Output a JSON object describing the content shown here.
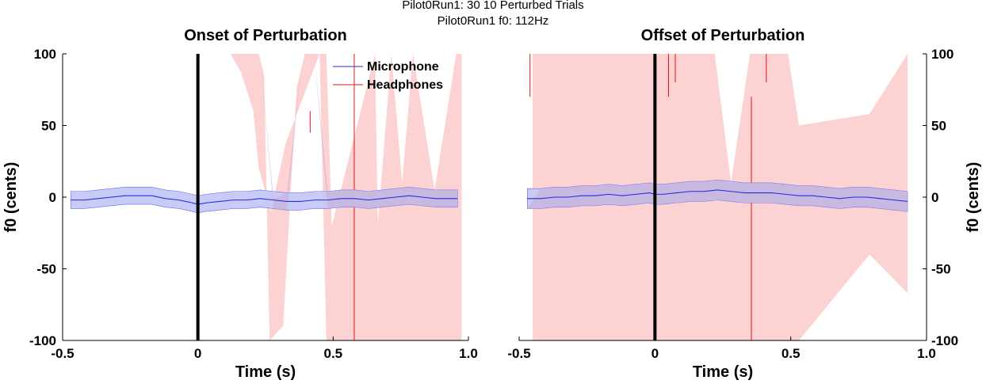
{
  "suptitle": {
    "line1": "Pilot0Run1: 30   10 Perturbed Trials",
    "line2": "Pilot0Run1   f0: 112Hz"
  },
  "colors": {
    "microphone": "#2a2ae6",
    "microphone_band": "#c5c8f5",
    "headphones": "#e01414",
    "headphones_band": "#fcd2d2",
    "overlap": "#c8acd2",
    "event_line": "#000000"
  },
  "chart_data": [
    {
      "type": "line",
      "title": "Onset of Perturbation",
      "xlabel": "Time (s)",
      "ylabel": "f0 (cents)",
      "xlim": [
        -0.5,
        1.0
      ],
      "ylim": [
        -100,
        100
      ],
      "xticks": [
        -0.5,
        0,
        0.5,
        1.0
      ],
      "xtick_labels": [
        "-0.5",
        "0",
        "0.5",
        "1.0"
      ],
      "yticks": [
        -100,
        -50,
        0,
        50,
        100
      ],
      "ytick_labels": [
        "-100",
        "-50",
        "0",
        "50",
        "100"
      ],
      "yaxis_side": "left",
      "event_x": 0,
      "legend": {
        "position": "top-right",
        "entries": [
          "Microphone",
          "Headphones"
        ]
      },
      "series": [
        {
          "name": "Microphone",
          "x": [
            -0.47,
            -0.42,
            -0.37,
            -0.32,
            -0.27,
            -0.22,
            -0.17,
            -0.12,
            -0.07,
            -0.02,
            0.0,
            0.03,
            0.08,
            0.13,
            0.18,
            0.23,
            0.28,
            0.33,
            0.38,
            0.43,
            0.48,
            0.53,
            0.58,
            0.63,
            0.68,
            0.73,
            0.78,
            0.83,
            0.88,
            0.93,
            0.96
          ],
          "mean": [
            -2,
            -2,
            -1,
            0,
            1,
            1,
            1,
            -1,
            -2,
            -4,
            -5,
            -4,
            -3,
            -2,
            -2,
            -1,
            -2,
            -3,
            -3,
            -2,
            -2,
            -1,
            -1,
            -2,
            -1,
            0,
            1,
            0,
            -1,
            -1,
            -1
          ],
          "band": 6
        },
        {
          "name": "Headphones",
          "band_upper": {
            "x": [
              0.07,
              0.12,
              0.16,
              0.205,
              0.225,
              0.27,
              0.325,
              0.45,
              0.475,
              0.495,
              0.655,
              0.665,
              0.715,
              0.755,
              0.795,
              0.875,
              0.955,
              0.975
            ],
            "y": [
              100,
              100,
              87,
              60,
              20,
              -10,
              38,
              100,
              100,
              -20,
              100,
              -20,
              100,
              10,
              100,
              5,
              100,
              100
            ]
          },
          "band_lower": {
            "x": [
              0.07,
              0.12,
              0.16,
              0.205,
              0.225,
              0.245,
              0.265,
              0.315,
              0.365,
              0.395,
              0.45,
              0.475,
              0.495,
              0.655,
              0.665,
              0.715,
              0.755,
              0.795,
              0.875,
              0.955,
              0.975
            ],
            "y": [
              100,
              100,
              100,
              100,
              100,
              85,
              -100,
              -90,
              76,
              100,
              100,
              -100,
              -100,
              -100,
              -100,
              -100,
              -100,
              -100,
              -100,
              -100,
              -100
            ]
          },
          "spikes": [
            {
              "x": 0.415,
              "y_from": 60,
              "y_to": 45
            },
            {
              "x": 0.578,
              "y_from": 100,
              "y_to": -100
            }
          ]
        }
      ]
    },
    {
      "type": "line",
      "title": "Offset of Perturbation",
      "xlabel": "Time (s)",
      "ylabel": "f0 (cents)",
      "xlim": [
        -0.5,
        1.0
      ],
      "ylim": [
        -100,
        100
      ],
      "xticks": [
        -0.5,
        0,
        0.5,
        1.0
      ],
      "xtick_labels": [
        "-0.5",
        "0",
        "0.5",
        "1.0"
      ],
      "yticks": [
        -100,
        -50,
        0,
        50,
        100
      ],
      "ytick_labels": [
        "-100",
        "-50",
        "0",
        "50",
        "100"
      ],
      "yaxis_side": "right",
      "event_x": 0,
      "series": [
        {
          "name": "Microphone",
          "x": [
            -0.47,
            -0.42,
            -0.37,
            -0.32,
            -0.27,
            -0.22,
            -0.17,
            -0.12,
            -0.07,
            -0.02,
            0.0,
            0.03,
            0.08,
            0.13,
            0.18,
            0.23,
            0.28,
            0.33,
            0.38,
            0.43,
            0.48,
            0.53,
            0.58,
            0.63,
            0.68,
            0.73,
            0.78,
            0.83,
            0.88,
            0.93
          ],
          "mean": [
            -1,
            -1,
            0,
            0,
            1,
            1,
            2,
            1,
            2,
            3,
            2,
            2,
            3,
            4,
            4,
            5,
            4,
            3,
            3,
            3,
            2,
            1,
            1,
            0,
            -1,
            0,
            0,
            -1,
            -2,
            -3
          ],
          "band": 7
        },
        {
          "name": "Headphones",
          "band_upper": {
            "x": [
              -0.45,
              -0.43,
              -0.06,
              -0.03,
              0.005,
              0.085,
              0.11,
              0.14,
              0.175,
              0.22,
              0.28,
              0.35,
              0.37,
              0.39,
              0.42,
              0.49,
              0.53,
              0.79,
              0.93
            ],
            "y": [
              100,
              100,
              100,
              100,
              100,
              100,
              100,
              100,
              100,
              100,
              10,
              100,
              100,
              100,
              100,
              100,
              50,
              58,
              100
            ]
          },
          "band_lower": {
            "x": [
              -0.45,
              -0.43,
              -0.06,
              -0.03,
              0.005,
              0.085,
              0.11,
              0.14,
              0.175,
              0.22,
              0.28,
              0.35,
              0.37,
              0.39,
              0.42,
              0.49,
              0.53,
              0.79,
              0.93
            ],
            "y": [
              -100,
              -100,
              -100,
              -100,
              -100,
              -100,
              -100,
              -100,
              -100,
              -100,
              -100,
              -100,
              -100,
              -100,
              -100,
              -100,
              -100,
              -40,
              -67
            ]
          },
          "spikes": [
            {
              "x": -0.46,
              "y_from": 100,
              "y_to": 70
            },
            {
              "x": 0.05,
              "y_from": 100,
              "y_to": 70
            },
            {
              "x": 0.075,
              "y_from": 100,
              "y_to": 80
            },
            {
              "x": 0.41,
              "y_from": 100,
              "y_to": 80
            },
            {
              "x": 0.355,
              "y_from": 70,
              "y_to": -100
            }
          ]
        }
      ]
    }
  ]
}
